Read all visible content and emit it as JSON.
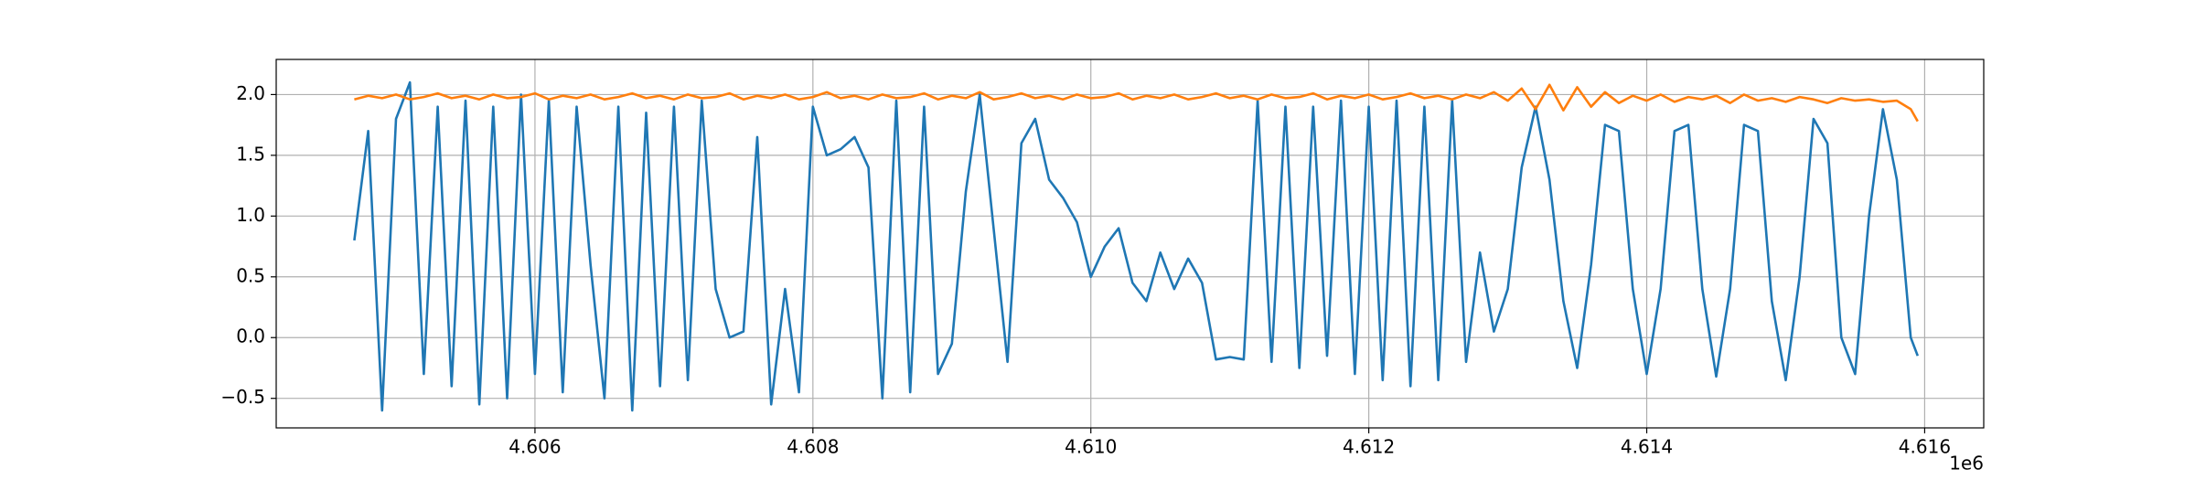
{
  "chart_data": {
    "type": "line",
    "x": [
      4604700,
      4604800,
      4604900,
      4605000,
      4605100,
      4605200,
      4605300,
      4605400,
      4605500,
      4605600,
      4605700,
      4605800,
      4605900,
      4606000,
      4606100,
      4606200,
      4606300,
      4606400,
      4606500,
      4606600,
      4606700,
      4606800,
      4606900,
      4607000,
      4607100,
      4607200,
      4607300,
      4607400,
      4607500,
      4607600,
      4607700,
      4607800,
      4607900,
      4608000,
      4608100,
      4608200,
      4608300,
      4608400,
      4608500,
      4608600,
      4608700,
      4608800,
      4608900,
      4609000,
      4609100,
      4609200,
      4609300,
      4609400,
      4609500,
      4609600,
      4609700,
      4609800,
      4609900,
      4610000,
      4610100,
      4610200,
      4610300,
      4610400,
      4610500,
      4610600,
      4610700,
      4610800,
      4610900,
      4611000,
      4611100,
      4611200,
      4611300,
      4611400,
      4611500,
      4611600,
      4611700,
      4611800,
      4611900,
      4612000,
      4612100,
      4612200,
      4612300,
      4612400,
      4612500,
      4612600,
      4612700,
      4612800,
      4612900,
      4613000,
      4613100,
      4613200,
      4613300,
      4613400,
      4613500,
      4613600,
      4613700,
      4613800,
      4613900,
      4614000,
      4614100,
      4614200,
      4614300,
      4614400,
      4614500,
      4614600,
      4614700,
      4614800,
      4614900,
      4615000,
      4615100,
      4615200,
      4615300,
      4615400,
      4615500,
      4615600,
      4615700,
      4615800,
      4615900,
      4615950
    ],
    "series": [
      {
        "color": "#1f77b4",
        "values": [
          0.8,
          1.7,
          -0.6,
          1.8,
          2.1,
          -0.3,
          1.9,
          -0.4,
          1.95,
          -0.55,
          1.9,
          -0.5,
          2.0,
          -0.3,
          1.95,
          -0.45,
          1.9,
          0.6,
          -0.5,
          1.9,
          -0.6,
          1.85,
          -0.4,
          1.9,
          -0.35,
          1.95,
          0.4,
          0.0,
          0.05,
          1.65,
          -0.55,
          0.4,
          -0.45,
          1.9,
          1.5,
          1.55,
          1.65,
          1.4,
          -0.5,
          1.95,
          -0.45,
          1.9,
          -0.3,
          -0.05,
          1.2,
          2.0,
          0.9,
          -0.2,
          1.6,
          1.8,
          1.3,
          1.15,
          0.95,
          0.5,
          0.75,
          0.9,
          0.45,
          0.3,
          0.7,
          0.4,
          0.65,
          0.45,
          -0.18,
          -0.16,
          -0.18,
          1.95,
          -0.2,
          1.9,
          -0.25,
          1.9,
          -0.15,
          1.95,
          -0.3,
          1.9,
          -0.35,
          1.95,
          -0.4,
          1.9,
          -0.35,
          1.95,
          -0.2,
          0.7,
          0.05,
          0.4,
          1.4,
          1.9,
          1.3,
          0.3,
          -0.25,
          0.6,
          1.75,
          1.7,
          0.4,
          -0.3,
          0.4,
          1.7,
          1.75,
          0.4,
          -0.32,
          0.4,
          1.75,
          1.7,
          0.3,
          -0.35,
          0.5,
          1.8,
          1.6,
          0.0,
          -0.3,
          1.0,
          1.88,
          1.3,
          0.0,
          -0.15
        ]
      },
      {
        "color": "#ff7f0e",
        "values": [
          1.96,
          1.99,
          1.97,
          2.0,
          1.96,
          1.98,
          2.01,
          1.97,
          1.99,
          1.96,
          2.0,
          1.97,
          1.98,
          2.01,
          1.96,
          1.99,
          1.97,
          2.0,
          1.96,
          1.98,
          2.01,
          1.97,
          1.99,
          1.96,
          2.0,
          1.97,
          1.98,
          2.01,
          1.96,
          1.99,
          1.97,
          2.0,
          1.96,
          1.98,
          2.02,
          1.97,
          1.99,
          1.96,
          2.0,
          1.97,
          1.98,
          2.01,
          1.96,
          1.99,
          1.97,
          2.02,
          1.96,
          1.98,
          2.01,
          1.97,
          1.99,
          1.96,
          2.0,
          1.97,
          1.98,
          2.01,
          1.96,
          1.99,
          1.97,
          2.0,
          1.96,
          1.98,
          2.01,
          1.97,
          1.99,
          1.96,
          2.0,
          1.97,
          1.98,
          2.01,
          1.96,
          1.99,
          1.97,
          2.0,
          1.96,
          1.98,
          2.01,
          1.97,
          1.99,
          1.96,
          2.0,
          1.97,
          2.02,
          1.95,
          2.05,
          1.88,
          2.08,
          1.87,
          2.06,
          1.9,
          2.02,
          1.93,
          1.99,
          1.95,
          2.0,
          1.94,
          1.98,
          1.96,
          1.99,
          1.93,
          2.0,
          1.95,
          1.97,
          1.94,
          1.98,
          1.96,
          1.93,
          1.97,
          1.95,
          1.96,
          1.94,
          1.95,
          1.88,
          1.78
        ]
      }
    ],
    "xlim": [
      4604138,
      4616425
    ],
    "ylim": [
      -0.743,
      2.289
    ],
    "xticks": [
      {
        "value": 4606000,
        "label": "4.606"
      },
      {
        "value": 4608000,
        "label": "4.608"
      },
      {
        "value": 4610000,
        "label": "4.610"
      },
      {
        "value": 4612000,
        "label": "4.612"
      },
      {
        "value": 4614000,
        "label": "4.614"
      },
      {
        "value": 4616000,
        "label": "4.616"
      }
    ],
    "x_offset_label": "1e6",
    "yticks": [
      {
        "value": -0.5,
        "label": "−0.5"
      },
      {
        "value": 0,
        "label": "0.0"
      },
      0.5,
      {
        "value": 1,
        "label": "1.0"
      },
      1.5,
      {
        "value": 2,
        "label": "2.0"
      }
    ],
    "grid": true
  }
}
